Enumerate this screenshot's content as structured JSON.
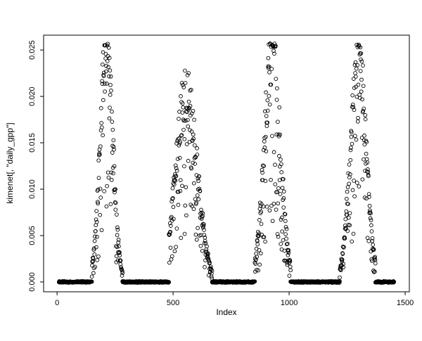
{
  "figure": {
    "background": "#ffffff",
    "foreground": "#000000"
  },
  "chart_data": {
    "type": "scatter",
    "title": "",
    "xlabel": "Index",
    "ylabel": "kimenet[, \"daily_gpp\"]",
    "xlim": [
      0,
      1500
    ],
    "ylim": [
      0.0,
      0.025
    ],
    "x_ticks": [
      "0",
      "500",
      "1000",
      "1500"
    ],
    "x_tick_values": [
      0,
      500,
      1000,
      1500
    ],
    "y_ticks": [
      "0.000",
      "0.005",
      "0.010",
      "0.015",
      "0.020",
      "0.025"
    ],
    "y_tick_values": [
      0,
      0.005,
      0.01,
      0.015,
      0.02,
      0.025
    ],
    "marker": "open-circle",
    "point_color": "#000000",
    "grid": false,
    "legend": "none",
    "box": true,
    "series_name": "daily_gpp",
    "pattern": {
      "description": "Daily GPP time series plotted against index: long dense runs of zero values interrupted by four bell-shaped growing-season peaks with scattered points on their flanks",
      "zero_value": 0.0,
      "zero_runs": [
        {
          "x_start": 8,
          "x_end": 150
        },
        {
          "x_start": 282,
          "x_end": 482
        },
        {
          "x_start": 668,
          "x_end": 852
        },
        {
          "x_start": 1006,
          "x_end": 1218
        },
        {
          "x_start": 1372,
          "x_end": 1452
        }
      ],
      "peaks": [
        {
          "x_start": 150,
          "x_end": 282,
          "center": 213,
          "sigma": 27,
          "peak_y": 0.0255,
          "low_scatter": 0.22
        },
        {
          "x_start": 482,
          "x_end": 668,
          "center": 558,
          "sigma": 46,
          "peak_y": 0.0205,
          "low_scatter": 0.38
        },
        {
          "x_start": 852,
          "x_end": 1006,
          "center": 928,
          "sigma": 34,
          "peak_y": 0.0253,
          "low_scatter": 0.33
        },
        {
          "x_start": 1218,
          "x_end": 1372,
          "center": 1298,
          "sigma": 33,
          "peak_y": 0.0247,
          "low_scatter": 0.3
        }
      ]
    }
  }
}
